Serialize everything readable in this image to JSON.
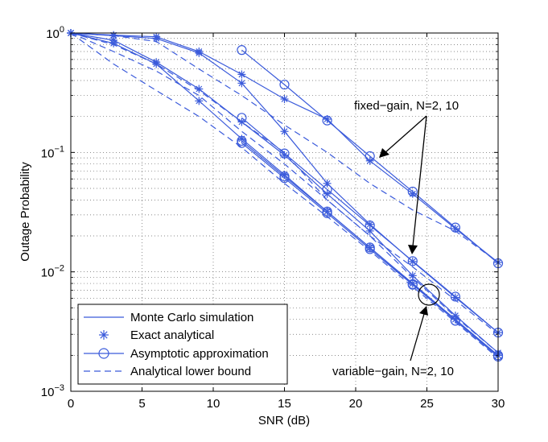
{
  "chart_data": {
    "type": "line",
    "xscale": "linear",
    "yscale": "log",
    "xlabel": "SNR (dB)",
    "ylabel": "Outage Probability",
    "xlim": [
      0,
      30
    ],
    "ylim": [
      0.001,
      1
    ],
    "xticks": [
      0,
      5,
      10,
      15,
      20,
      25,
      30
    ],
    "yticks": [
      {
        "value": 1,
        "base": "10",
        "exp": "0"
      },
      {
        "value": 0.1,
        "base": "10",
        "exp": "−1"
      },
      {
        "value": 0.01,
        "base": "10",
        "exp": "−2"
      },
      {
        "value": 0.001,
        "base": "10",
        "exp": "−3"
      }
    ],
    "grid": true,
    "colors": {
      "series": "#3b5bdb",
      "grid": "#666666",
      "axis": "#000000"
    },
    "annotations": [
      {
        "text": "fixed−gain, N=2, 10"
      },
      {
        "text": "variable−gain, N=2, 10"
      }
    ],
    "legend": {
      "position": "bottom-left",
      "entries": [
        {
          "label": "Monte Carlo simulation",
          "style": "solid"
        },
        {
          "label": "Exact analytical",
          "style": "star"
        },
        {
          "label": "Asymptotic approximation",
          "style": "solid-circle"
        },
        {
          "label": "Analytical lower bound",
          "style": "dashed"
        }
      ]
    },
    "series": [
      {
        "name": "fixed-gain N=2 (simulation/exact)",
        "style": "solid-star",
        "x": [
          0,
          3,
          6,
          9,
          12,
          15,
          18,
          21,
          24,
          27,
          30
        ],
        "y": [
          1,
          0.96,
          0.93,
          0.7,
          0.45,
          0.28,
          0.19,
          0.085,
          0.045,
          0.023,
          0.012
        ]
      },
      {
        "name": "fixed-gain N=2 (asymptotic)",
        "style": "solid-circle",
        "x": [
          12,
          15,
          18,
          21,
          24,
          27,
          30
        ],
        "y": [
          0.72,
          0.37,
          0.185,
          0.093,
          0.047,
          0.0235,
          0.0118
        ]
      },
      {
        "name": "fixed-gain N=10 (simulation/exact)",
        "style": "solid-star",
        "x": [
          0,
          3,
          6,
          9,
          12,
          15,
          18,
          21,
          24,
          27,
          30
        ],
        "y": [
          1,
          0.95,
          0.9,
          0.68,
          0.38,
          0.15,
          0.055,
          0.025,
          0.0122,
          0.0061,
          0.0031
        ]
      },
      {
        "name": "fixed-gain N=10 (asymptotic)",
        "style": "solid-circle",
        "x": [
          12,
          15,
          18,
          21,
          24,
          27,
          30
        ],
        "y": [
          0.195,
          0.098,
          0.049,
          0.0245,
          0.0123,
          0.0062,
          0.0031
        ]
      },
      {
        "name": "variable-gain N=2 (simulation/exact)",
        "style": "solid-star",
        "x": [
          0,
          3,
          6,
          9,
          12,
          15,
          18,
          21,
          24,
          27,
          30
        ],
        "y": [
          1,
          0.87,
          0.57,
          0.34,
          0.18,
          0.095,
          0.045,
          0.022,
          0.0093,
          0.0043,
          0.0021
        ]
      },
      {
        "name": "variable-gain N=2 (asymptotic)",
        "style": "solid-circle",
        "x": [
          12,
          15,
          18,
          21,
          24,
          27,
          30
        ],
        "y": [
          0.125,
          0.063,
          0.032,
          0.016,
          0.0079,
          0.0039,
          0.002
        ]
      },
      {
        "name": "variable-gain N=10 (simulation/exact)",
        "style": "solid-star",
        "x": [
          0,
          3,
          6,
          9,
          12,
          15,
          18,
          21,
          24,
          27,
          30
        ],
        "y": [
          1,
          0.82,
          0.55,
          0.27,
          0.13,
          0.065,
          0.032,
          0.016,
          0.008,
          0.004,
          0.002
        ]
      },
      {
        "name": "variable-gain N=10 (asymptotic)",
        "style": "solid-circle",
        "x": [
          12,
          15,
          18,
          21,
          24,
          27,
          30
        ],
        "y": [
          0.12,
          0.061,
          0.031,
          0.0155,
          0.0078,
          0.0039,
          0.00195
        ]
      },
      {
        "name": "lower bound fixed-gain N=2",
        "style": "dashed",
        "x": [
          0,
          3,
          6,
          9,
          12,
          15,
          18,
          21,
          24,
          27,
          30
        ],
        "y": [
          1,
          0.95,
          0.85,
          0.5,
          0.3,
          0.17,
          0.1,
          0.055,
          0.033,
          0.022,
          0.012
        ]
      },
      {
        "name": "lower bound fixed-gain N=10",
        "style": "dashed",
        "x": [
          0,
          3,
          6,
          9,
          12,
          15,
          18,
          21,
          24,
          27,
          30
        ],
        "y": [
          1,
          0.8,
          0.55,
          0.33,
          0.18,
          0.1,
          0.04,
          0.02,
          0.011,
          0.0058,
          0.003
        ]
      },
      {
        "name": "lower bound variable-gain N=2",
        "style": "dashed",
        "x": [
          0,
          3,
          6,
          9,
          12,
          15,
          18,
          21,
          24,
          27,
          30
        ],
        "y": [
          1,
          0.7,
          0.48,
          0.3,
          0.15,
          0.08,
          0.04,
          0.02,
          0.009,
          0.0042,
          0.0021
        ]
      },
      {
        "name": "lower bound variable-gain N=10",
        "style": "dashed",
        "x": [
          0,
          3,
          6,
          9,
          12,
          15,
          18,
          21,
          24,
          27,
          30
        ],
        "y": [
          1,
          0.55,
          0.33,
          0.2,
          0.11,
          0.055,
          0.029,
          0.015,
          0.0075,
          0.0038,
          0.0019
        ]
      }
    ]
  }
}
